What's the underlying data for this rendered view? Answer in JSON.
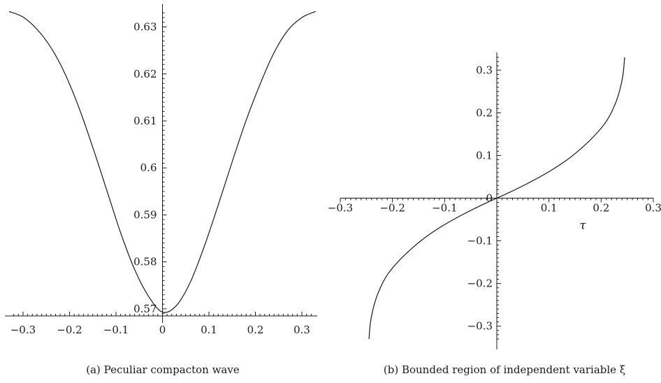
{
  "chart_data": [
    {
      "type": "line",
      "caption": "(a)  Peculiar compacton wave",
      "xlim": [
        -0.33,
        0.33
      ],
      "ylim": [
        0.5685,
        0.6335
      ],
      "x_ticks": [
        -0.3,
        -0.2,
        -0.1,
        0,
        0.1,
        0.2,
        0.3
      ],
      "x_tick_labels": [
        "−0.3",
        "−0.2",
        "−0.1",
        "0",
        "0.1",
        "0.2",
        "0.3"
      ],
      "y_ticks": [
        0.57,
        0.58,
        0.59,
        0.6,
        0.61,
        0.62,
        0.63
      ],
      "y_tick_labels": [
        "0.57",
        "0.58",
        "0.59",
        "0.6",
        "0.61",
        "0.62",
        "0.63"
      ],
      "xlabel": "",
      "ylabel": "",
      "series": [
        {
          "x": [
            -0.33,
            -0.3,
            -0.27,
            -0.24,
            -0.21,
            -0.18,
            -0.15,
            -0.12,
            -0.09,
            -0.06,
            -0.03,
            0,
            0.03,
            0.06,
            0.09,
            0.12,
            0.15,
            0.18,
            0.21,
            0.24,
            0.27,
            0.3,
            0.33
          ],
          "y": [
            0.6333,
            0.6321,
            0.6295,
            0.6256,
            0.6201,
            0.6129,
            0.6044,
            0.5953,
            0.5862,
            0.5784,
            0.5727,
            0.5693,
            0.5707,
            0.5757,
            0.5833,
            0.5921,
            0.6013,
            0.6101,
            0.6178,
            0.6245,
            0.6293,
            0.632,
            0.6333
          ]
        }
      ]
    },
    {
      "type": "line",
      "caption": "(b)  Bounded region of independent variable ξ",
      "xlim": [
        -0.3,
        0.3
      ],
      "ylim": [
        -0.33,
        0.33
      ],
      "x_ticks": [
        -0.3,
        -0.2,
        -0.1,
        0.1,
        0.2,
        0.3
      ],
      "x_tick_labels": [
        "−0.3",
        "−0.2",
        "−0.1",
        "0.1",
        "0.2",
        "0.3"
      ],
      "y_ticks": [
        0.3,
        0.2,
        0.1,
        0,
        -0.1,
        -0.2,
        -0.3
      ],
      "y_tick_labels": [
        "0.3",
        "0.2",
        "0.1",
        "0",
        "−0.1",
        "−0.2",
        "−0.3"
      ],
      "xlabel": "τ",
      "ylabel": "",
      "series": [
        {
          "x": [
            -0.245,
            -0.242,
            -0.235,
            -0.225,
            -0.21,
            -0.19,
            -0.165,
            -0.135,
            -0.1,
            -0.06,
            -0.02,
            0,
            0.02,
            0.06,
            0.1,
            0.135,
            0.165,
            0.19,
            0.21,
            0.225,
            0.235,
            0.242,
            0.245
          ],
          "y": [
            -0.33,
            -0.29,
            -0.25,
            -0.215,
            -0.18,
            -0.15,
            -0.12,
            -0.09,
            -0.062,
            -0.035,
            -0.011,
            0,
            0.011,
            0.035,
            0.062,
            0.09,
            0.12,
            0.15,
            0.18,
            0.215,
            0.25,
            0.29,
            0.33
          ]
        }
      ]
    }
  ]
}
